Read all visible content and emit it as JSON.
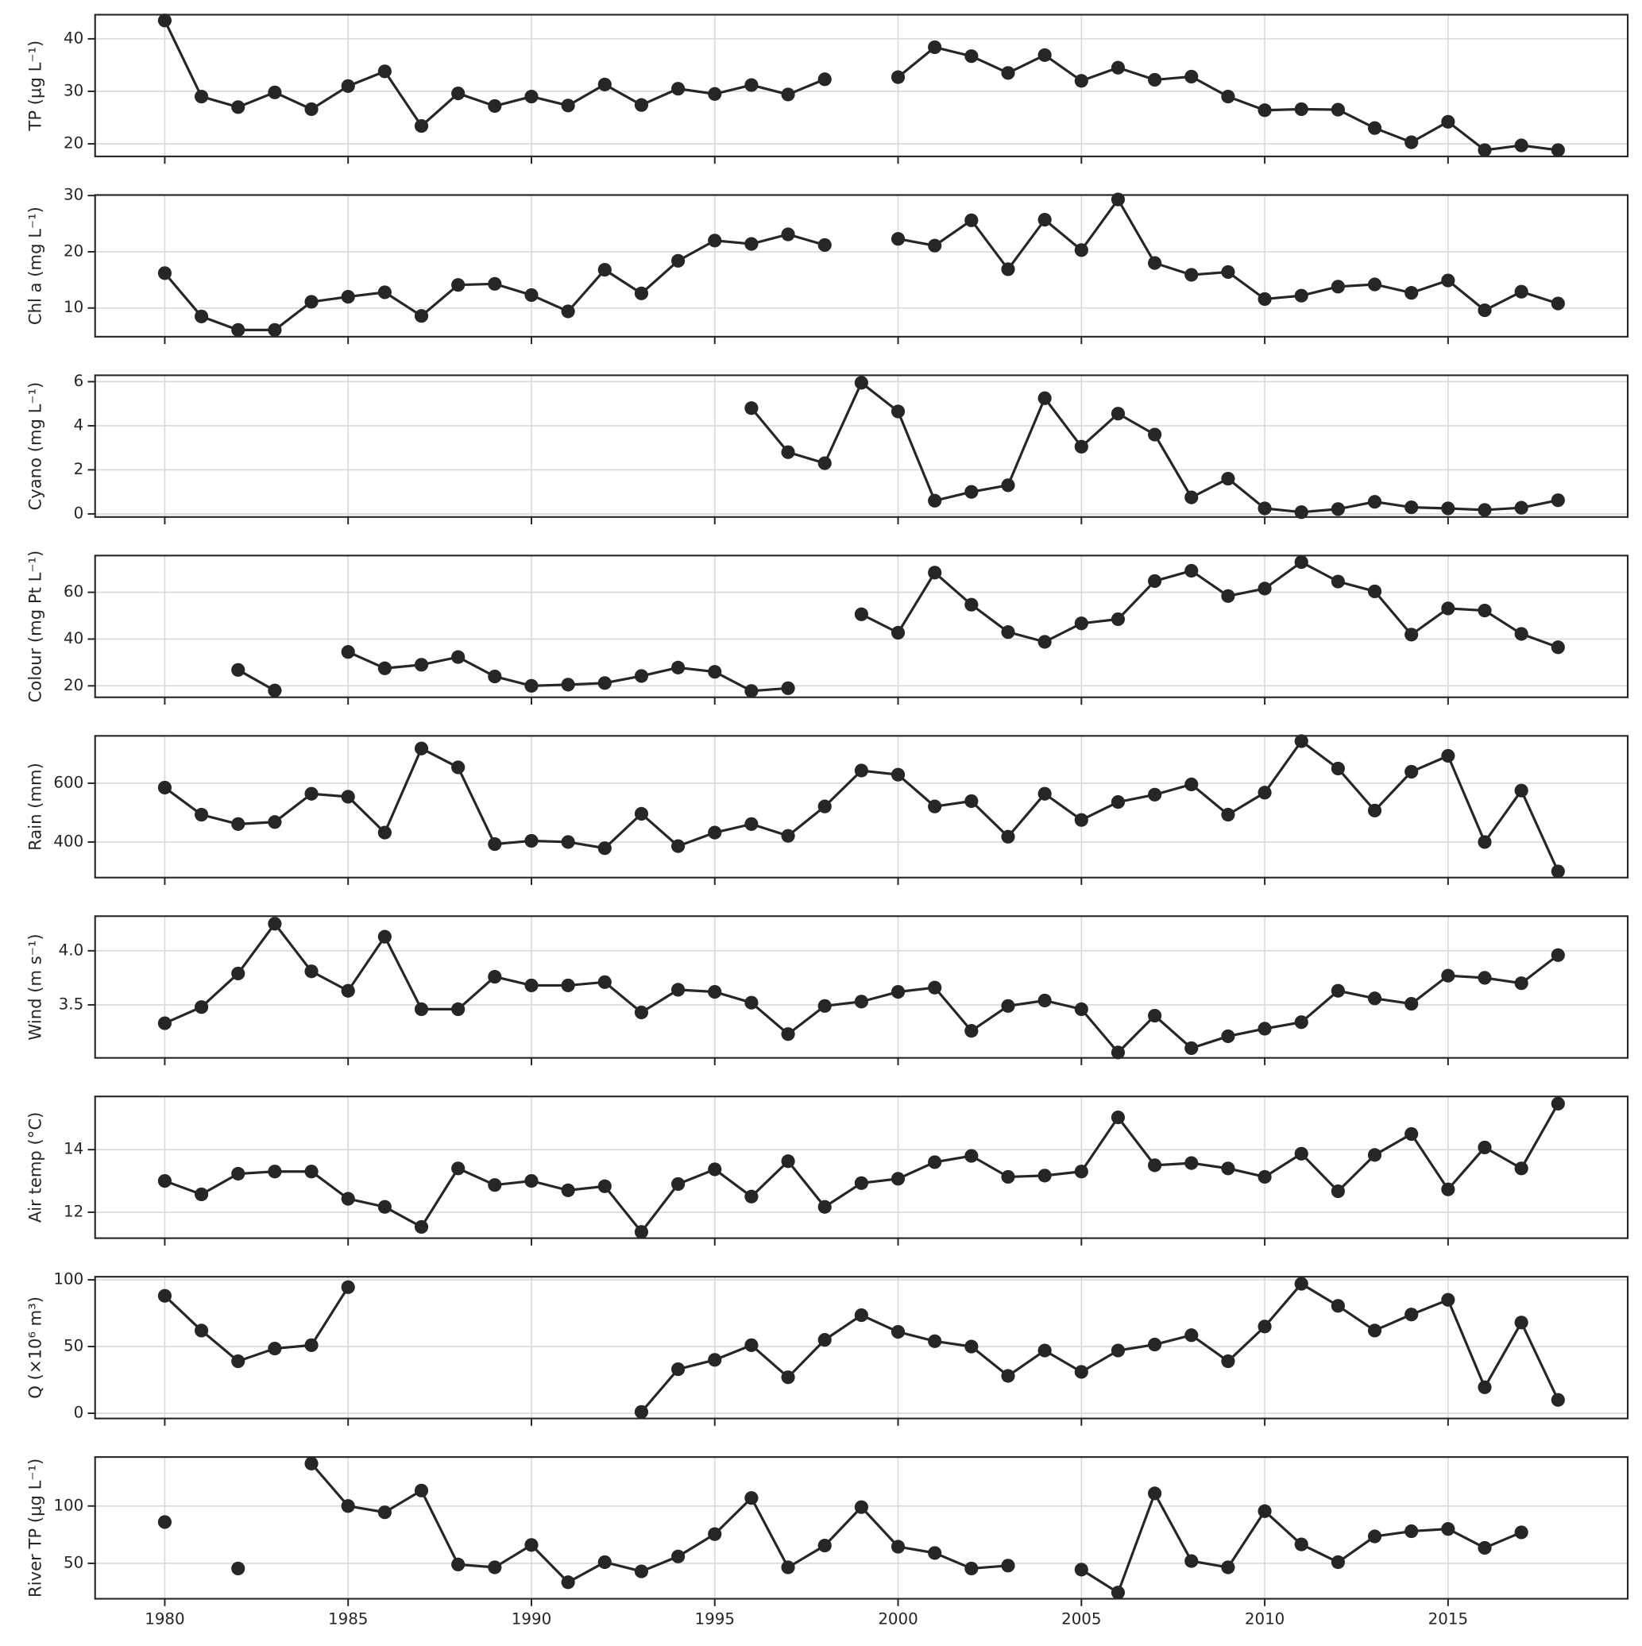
{
  "chart_data": [
    {
      "type": "line",
      "ylabel": "TP (µg L⁻¹)",
      "color": "#262626",
      "grid": true,
      "x": [
        1980,
        1981,
        1982,
        1983,
        1984,
        1985,
        1986,
        1987,
        1988,
        1989,
        1990,
        1991,
        1992,
        1993,
        1994,
        1995,
        1996,
        1997,
        1998,
        1999,
        2000,
        2001,
        2002,
        2003,
        2004,
        2005,
        2006,
        2007,
        2008,
        2009,
        2010,
        2011,
        2012,
        2013,
        2014,
        2015,
        2016,
        2017,
        2018
      ],
      "values": [
        43.5,
        29,
        27,
        29.8,
        26.6,
        31,
        33.8,
        23.4,
        29.6,
        27.2,
        29,
        27.3,
        31.3,
        27.4,
        30.5,
        29.5,
        31.2,
        29.4,
        32.3,
        null,
        32.7,
        38.4,
        36.7,
        33.5,
        36.9,
        32,
        34.5,
        32.2,
        32.8,
        29,
        26.4,
        26.6,
        26.5,
        23,
        20.3,
        24.2,
        18.8,
        19.7,
        18.8
      ],
      "xlim": [
        1978.1,
        2019.9
      ],
      "xticks": [
        1980,
        1985,
        1990,
        1995,
        2000,
        2005,
        2010,
        2015
      ],
      "ylim": [
        17.6,
        44.6
      ],
      "yticks": [
        20,
        30,
        40
      ]
    },
    {
      "type": "line",
      "ylabel": "Chl a (mg L⁻¹)",
      "color": "#262626",
      "grid": true,
      "x": [
        1980,
        1981,
        1982,
        1983,
        1984,
        1985,
        1986,
        1987,
        1988,
        1989,
        1990,
        1991,
        1992,
        1993,
        1994,
        1995,
        1996,
        1997,
        1998,
        1999,
        2000,
        2001,
        2002,
        2003,
        2004,
        2005,
        2006,
        2007,
        2008,
        2009,
        2010,
        2011,
        2012,
        2013,
        2014,
        2015,
        2016,
        2017,
        2018
      ],
      "values": [
        16.2,
        8.5,
        6.1,
        6.1,
        11.1,
        12,
        12.8,
        8.6,
        14.1,
        14.3,
        12.3,
        9.4,
        16.8,
        12.6,
        18.4,
        22,
        21.4,
        23.1,
        21.2,
        null,
        22.3,
        21.1,
        25.6,
        16.9,
        25.7,
        20.3,
        29.3,
        18,
        15.9,
        16.4,
        11.6,
        12.2,
        13.8,
        14.2,
        12.7,
        14.9,
        9.6,
        12.9,
        10.8
      ],
      "xlim": [
        1978.1,
        2019.9
      ],
      "xticks": [
        1980,
        1985,
        1990,
        1995,
        2000,
        2005,
        2010,
        2015
      ],
      "ylim": [
        4.9,
        30.1
      ],
      "yticks": [
        10,
        20,
        30
      ]
    },
    {
      "type": "line",
      "ylabel": "Cyano (mg L⁻¹)",
      "color": "#262626",
      "grid": true,
      "x": [
        1980,
        1981,
        1982,
        1983,
        1984,
        1985,
        1986,
        1987,
        1988,
        1989,
        1990,
        1991,
        1992,
        1993,
        1994,
        1995,
        1996,
        1997,
        1998,
        1999,
        2000,
        2001,
        2002,
        2003,
        2004,
        2005,
        2006,
        2007,
        2008,
        2009,
        2010,
        2011,
        2012,
        2013,
        2014,
        2015,
        2016,
        2017,
        2018
      ],
      "values": [
        null,
        null,
        null,
        null,
        null,
        null,
        null,
        null,
        null,
        null,
        null,
        null,
        null,
        null,
        null,
        null,
        4.8,
        2.8,
        2.3,
        5.95,
        4.65,
        0.6,
        1.0,
        1.3,
        5.25,
        3.05,
        4.55,
        3.6,
        0.75,
        1.6,
        0.25,
        0.08,
        0.22,
        0.55,
        0.3,
        0.25,
        0.18,
        0.28,
        0.62
      ],
      "xlim": [
        1978.1,
        2019.9
      ],
      "xticks": [
        1980,
        1985,
        1990,
        1995,
        2000,
        2005,
        2010,
        2015
      ],
      "ylim": [
        -0.14,
        6.29
      ],
      "yticks": [
        0,
        2,
        4,
        6
      ]
    },
    {
      "type": "line",
      "ylabel": "Colour (mg Pt L⁻¹)",
      "color": "#262626",
      "grid": true,
      "x": [
        1980,
        1981,
        1982,
        1983,
        1984,
        1985,
        1986,
        1987,
        1988,
        1989,
        1990,
        1991,
        1992,
        1993,
        1994,
        1995,
        1996,
        1997,
        1998,
        1999,
        2000,
        2001,
        2002,
        2003,
        2004,
        2005,
        2006,
        2007,
        2008,
        2009,
        2010,
        2011,
        2012,
        2013,
        2014,
        2015,
        2016,
        2017,
        2018
      ],
      "values": [
        null,
        null,
        26.8,
        18,
        null,
        34.5,
        27.5,
        29,
        32.3,
        24,
        20,
        20.5,
        21.2,
        24.2,
        27.8,
        26,
        17.8,
        19,
        null,
        50.6,
        42.7,
        68.4,
        54.7,
        43,
        38.8,
        46.7,
        48.5,
        64.8,
        69.2,
        58.4,
        61.6,
        72.9,
        64.6,
        60.4,
        41.9,
        53.1,
        52.2,
        42.2,
        36.5
      ],
      "xlim": [
        1978.1,
        2019.9
      ],
      "xticks": [
        1980,
        1985,
        1990,
        1995,
        2000,
        2005,
        2010,
        2015
      ],
      "ylim": [
        15.1,
        75.7
      ],
      "yticks": [
        20,
        40,
        60
      ]
    },
    {
      "type": "line",
      "ylabel": "Rain (mm)",
      "color": "#262626",
      "grid": true,
      "x": [
        1980,
        1981,
        1982,
        1983,
        1984,
        1985,
        1986,
        1987,
        1988,
        1989,
        1990,
        1991,
        1992,
        1993,
        1994,
        1995,
        1996,
        1997,
        1998,
        1999,
        2000,
        2001,
        2002,
        2003,
        2004,
        2005,
        2006,
        2007,
        2008,
        2009,
        2010,
        2011,
        2012,
        2013,
        2014,
        2015,
        2016,
        2017,
        2018
      ],
      "values": [
        585,
        493,
        461,
        468,
        564,
        554,
        432,
        718,
        654,
        393,
        404,
        400,
        379,
        496,
        386,
        432,
        461,
        421,
        521,
        643,
        629,
        521,
        539,
        418,
        564,
        475,
        536,
        561,
        596,
        493,
        568,
        743,
        650,
        507,
        639,
        693,
        400,
        575,
        300
      ],
      "xlim": [
        1978.1,
        2019.9
      ],
      "xticks": [
        1980,
        1985,
        1990,
        1995,
        2000,
        2005,
        2010,
        2015
      ],
      "ylim": [
        279,
        761
      ],
      "yticks": [
        400,
        600
      ]
    },
    {
      "type": "line",
      "ylabel": "Wind (m s⁻¹)",
      "color": "#262626",
      "grid": true,
      "x": [
        1980,
        1981,
        1982,
        1983,
        1984,
        1985,
        1986,
        1987,
        1988,
        1989,
        1990,
        1991,
        1992,
        1993,
        1994,
        1995,
        1996,
        1997,
        1998,
        1999,
        2000,
        2001,
        2002,
        2003,
        2004,
        2005,
        2006,
        2007,
        2008,
        2009,
        2010,
        2011,
        2012,
        2013,
        2014,
        2015,
        2016,
        2017,
        2018
      ],
      "values": [
        3.33,
        3.48,
        3.79,
        4.25,
        3.81,
        3.63,
        4.13,
        3.46,
        3.46,
        3.76,
        3.68,
        3.68,
        3.71,
        3.43,
        3.64,
        3.62,
        3.52,
        3.23,
        3.49,
        3.53,
        3.62,
        3.66,
        3.26,
        3.49,
        3.54,
        3.46,
        3.06,
        3.4,
        3.1,
        3.21,
        3.28,
        3.34,
        3.63,
        3.56,
        3.51,
        3.77,
        3.75,
        3.7,
        3.96
      ],
      "xlim": [
        1978.1,
        2019.9
      ],
      "xticks": [
        1980,
        1985,
        1990,
        1995,
        2000,
        2005,
        2010,
        2015
      ],
      "ylim": [
        3.01,
        4.32
      ],
      "yticks": [
        3.5,
        {
          "value": 4,
          "label": "4.0"
        }
      ]
    },
    {
      "type": "line",
      "ylabel": "Air temp (°C)",
      "color": "#262626",
      "grid": true,
      "x": [
        1980,
        1981,
        1982,
        1983,
        1984,
        1985,
        1986,
        1987,
        1988,
        1989,
        1990,
        1991,
        1992,
        1993,
        1994,
        1995,
        1996,
        1997,
        1998,
        1999,
        2000,
        2001,
        2002,
        2003,
        2004,
        2005,
        2006,
        2007,
        2008,
        2009,
        2010,
        2011,
        2012,
        2013,
        2014,
        2015,
        2016,
        2017,
        2018
      ],
      "values": [
        13.0,
        12.57,
        13.23,
        13.3,
        13.3,
        12.43,
        12.17,
        11.53,
        13.4,
        12.87,
        13.0,
        12.7,
        12.83,
        11.37,
        12.9,
        13.37,
        12.5,
        13.63,
        12.17,
        12.93,
        13.07,
        13.6,
        13.8,
        13.13,
        13.17,
        13.3,
        15.03,
        13.5,
        13.57,
        13.4,
        13.13,
        13.87,
        12.67,
        13.83,
        14.5,
        12.73,
        14.07,
        13.4,
        15.47
      ],
      "xlim": [
        1978.1,
        2019.9
      ],
      "xticks": [
        1980,
        1985,
        1990,
        1995,
        2000,
        2005,
        2010,
        2015
      ],
      "ylim": [
        11.17,
        15.7
      ],
      "yticks": [
        12,
        14
      ]
    },
    {
      "type": "line",
      "ylabel": "Q (×10⁶ m³)",
      "color": "#262626",
      "grid": true,
      "x": [
        1980,
        1981,
        1982,
        1983,
        1984,
        1985,
        1986,
        1987,
        1988,
        1989,
        1990,
        1991,
        1992,
        1993,
        1994,
        1995,
        1996,
        1997,
        1998,
        1999,
        2000,
        2001,
        2002,
        2003,
        2004,
        2005,
        2006,
        2007,
        2008,
        2009,
        2010,
        2011,
        2012,
        2013,
        2014,
        2015,
        2016,
        2017,
        2018
      ],
      "values": [
        88,
        62,
        39,
        48.5,
        51,
        94.5,
        null,
        null,
        null,
        null,
        null,
        null,
        null,
        1,
        33,
        40,
        51,
        27,
        55,
        73.5,
        61,
        54,
        50,
        28,
        47,
        31,
        47,
        51.5,
        58.5,
        39,
        65,
        97,
        80.5,
        62,
        74,
        85,
        19.5,
        68,
        10
      ],
      "xlim": [
        1978.1,
        2019.9
      ],
      "xticks": [
        1980,
        1985,
        1990,
        1995,
        2000,
        2005,
        2010,
        2015
      ],
      "ylim": [
        -3.9,
        102.3
      ],
      "yticks": [
        0,
        50,
        100
      ]
    },
    {
      "type": "line",
      "ylabel": "River TP (µg L⁻¹)",
      "color": "#262626",
      "grid": true,
      "x": [
        1980,
        1981,
        1982,
        1983,
        1984,
        1985,
        1986,
        1987,
        1988,
        1989,
        1990,
        1991,
        1992,
        1993,
        1994,
        1995,
        1996,
        1997,
        1998,
        1999,
        2000,
        2001,
        2002,
        2003,
        2004,
        2005,
        2006,
        2007,
        2008,
        2009,
        2010,
        2011,
        2012,
        2013,
        2014,
        2015,
        2016,
        2017,
        2018
      ],
      "values": [
        86,
        null,
        45.5,
        null,
        137,
        100,
        94.5,
        113.5,
        49,
        46.5,
        66,
        33.5,
        51,
        43,
        56,
        75.5,
        107,
        46.5,
        65.5,
        99,
        64.5,
        59,
        45.5,
        48,
        null,
        44.5,
        24.5,
        111,
        52,
        46.5,
        95.5,
        66.5,
        51,
        73.5,
        78,
        80,
        63.5,
        77,
        null
      ],
      "xlim": [
        1978.1,
        2019.9
      ],
      "xticks": [
        1980,
        1985,
        1990,
        1995,
        2000,
        2005,
        2010,
        2015
      ],
      "ylim": [
        19.1,
        142.7
      ],
      "yticks": [
        50,
        100
      ]
    }
  ]
}
